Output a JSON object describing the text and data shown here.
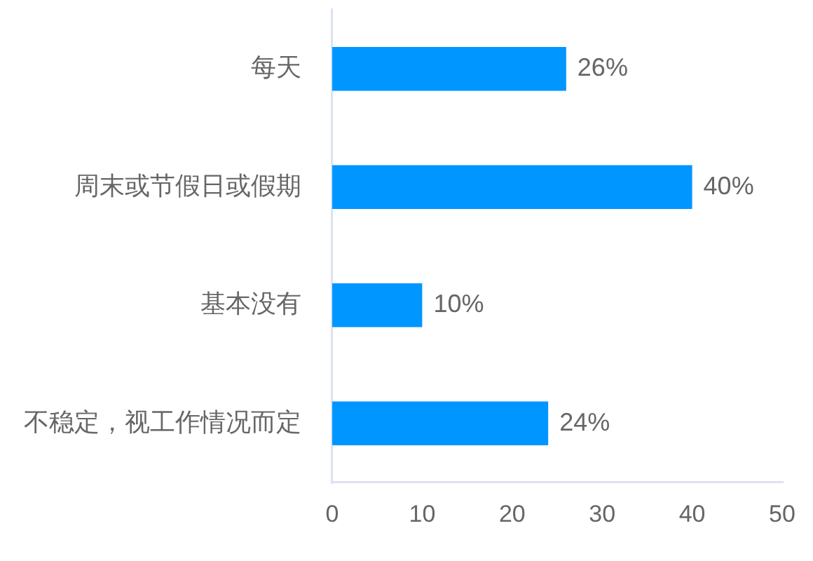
{
  "chart_data": {
    "type": "bar",
    "orientation": "horizontal",
    "categories": [
      "每天",
      "周末或节假日或假期",
      "基本没有",
      "不稳定，视工作情况而定"
    ],
    "values": [
      26,
      40,
      10,
      24
    ],
    "color": "#0096ff",
    "value_labels": [
      "26%",
      "40%",
      "10%",
      "24%"
    ],
    "xlim": [
      0,
      50
    ],
    "xticks": [
      0,
      10,
      20,
      30,
      40,
      50
    ]
  }
}
